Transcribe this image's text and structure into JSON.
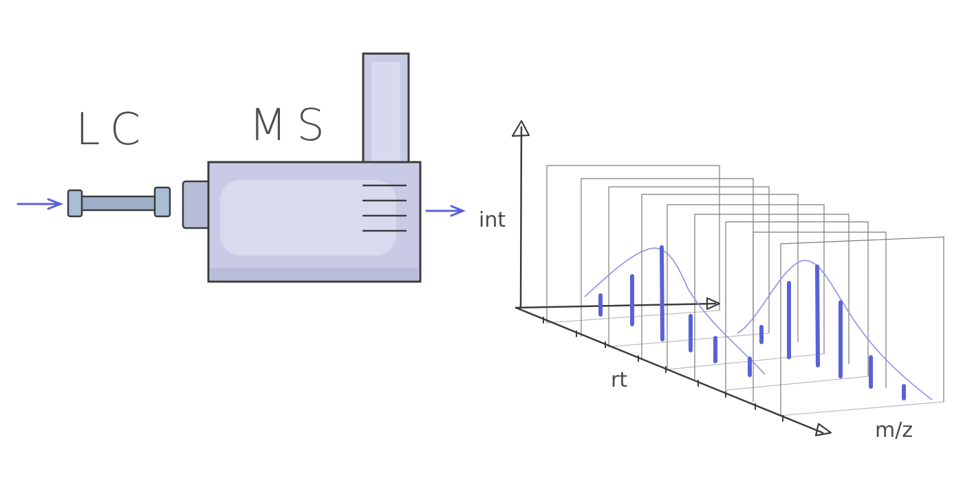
{
  "labels": {
    "lc": "LC",
    "ms": "MS",
    "intensity_axis": "int",
    "retention_axis": "rt",
    "mz_axis": "m/z"
  },
  "colors": {
    "flow_arrow": "#5961d9",
    "device_fill": "#c9cbe6",
    "column_fill": "#9db0c7",
    "ink": "#3b3b3b",
    "peak_bar": "#4a54d6",
    "envelope_curve": "#8a8fe6"
  },
  "icons": {
    "inlet": "arrow-right-icon",
    "outlet": "arrow-right-icon"
  },
  "spectra": {
    "panel_count": 9,
    "peak_groups": 2
  }
}
